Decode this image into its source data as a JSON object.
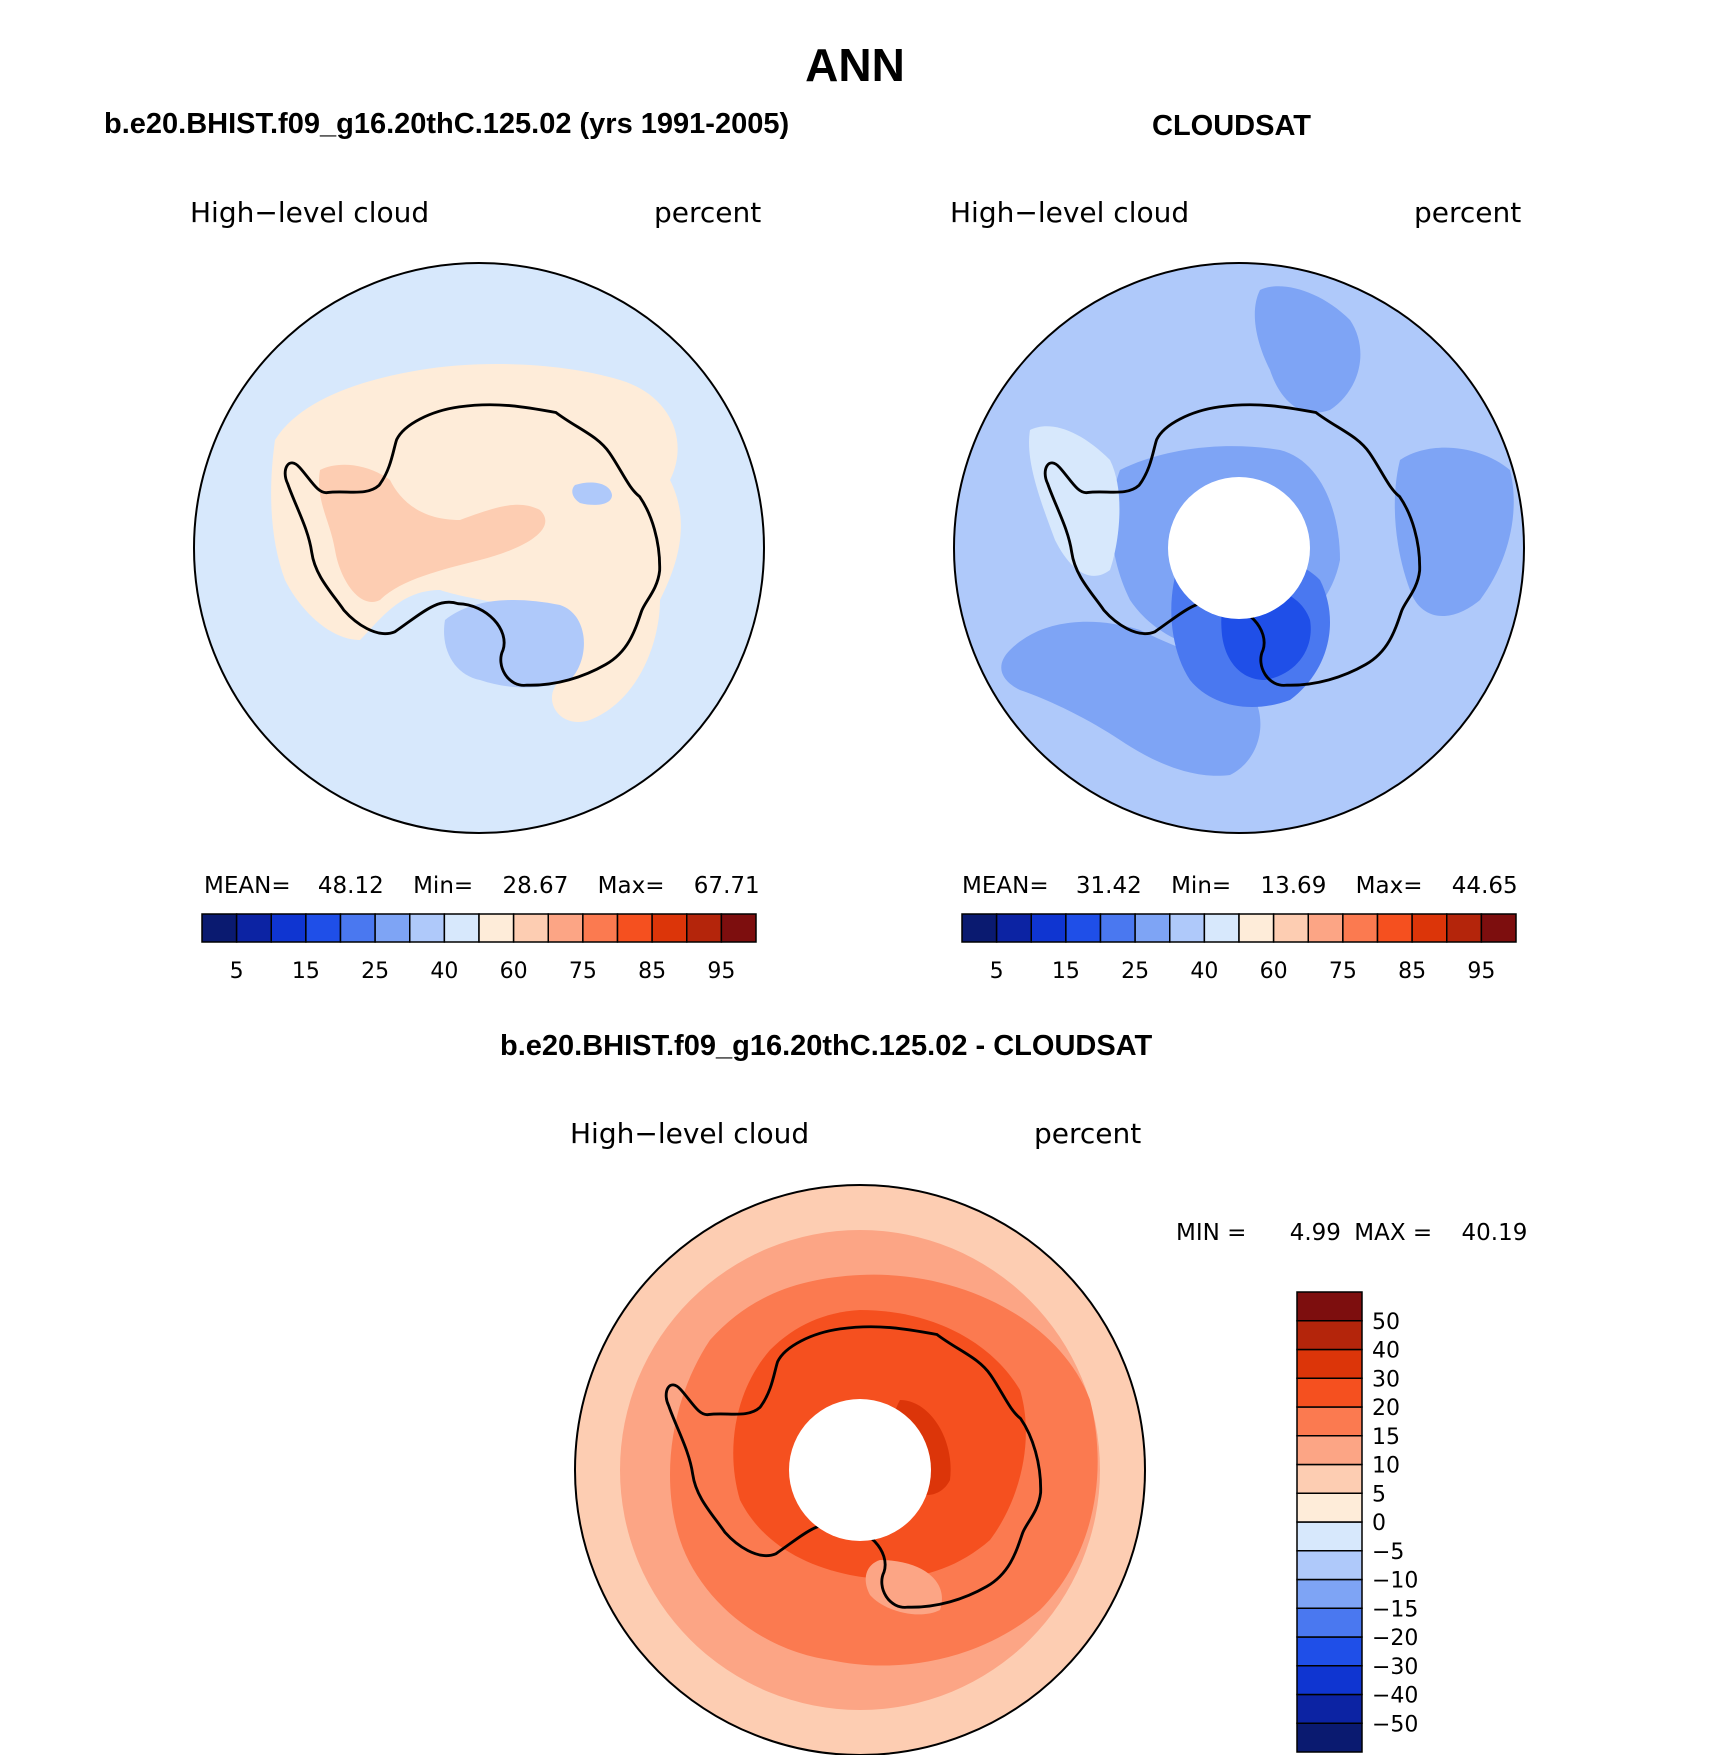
{
  "figure": {
    "title": "ANN"
  },
  "panels": {
    "model": {
      "title": "b.e20.BHIST.f09_g16.20thC.125.02 (yrs 1991-2005)",
      "variable": "High−level cloud",
      "units": "percent",
      "stats": {
        "mean_label": "MEAN=",
        "mean": "48.12",
        "min_label": "Min=",
        "min": "28.67",
        "max_label": "Max=",
        "max": "67.71"
      }
    },
    "obs": {
      "title": "CLOUDSAT",
      "variable": "High−level cloud",
      "units": "percent",
      "stats": {
        "mean_label": "MEAN=",
        "mean": "31.42",
        "min_label": "Min=",
        "min": "13.69",
        "max_label": "Max=",
        "max": "44.65"
      }
    },
    "diff": {
      "title": "b.e20.BHIST.f09_g16.20thC.125.02 - CLOUDSAT",
      "variable": "High−level cloud",
      "units": "percent",
      "stats": {
        "min_label": "MIN =",
        "min": "4.99",
        "max_label": "MAX =",
        "max": "40.19"
      }
    }
  },
  "colorbars": {
    "field": {
      "colors": [
        "#0a1a70",
        "#0c23a3",
        "#0f35d1",
        "#1f4fe8",
        "#4a78f0",
        "#7ea4f5",
        "#afc9fa",
        "#d7e8fc",
        "#feecd9",
        "#fdcdb2",
        "#fca585",
        "#fb7a50",
        "#f5501f",
        "#dc3509",
        "#b4250b",
        "#7d0e0e"
      ],
      "labels": [
        "5",
        "15",
        "25",
        "40",
        "60",
        "75",
        "85",
        "95"
      ]
    },
    "diff": {
      "colors": [
        "#0a1a70",
        "#0c23a3",
        "#0f35d1",
        "#1f4fe8",
        "#4a78f0",
        "#7ea4f5",
        "#afc9fa",
        "#d7e8fc",
        "#feecd9",
        "#fdcdb2",
        "#fca585",
        "#fb7a50",
        "#f5501f",
        "#dc3509",
        "#b4250b",
        "#7d0e0e"
      ],
      "labels": [
        "−50",
        "−40",
        "−30",
        "−20",
        "−15",
        "−10",
        "−5",
        "0",
        "5",
        "10",
        "15",
        "20",
        "30",
        "40",
        "50"
      ]
    }
  },
  "map_colors": {
    "ocean_model": "#d7e8fc",
    "warm_light": "#feecd9",
    "warm_mid": "#fdcdb2",
    "cool_light": "#afc9fa",
    "cool_mid": "#7ea4f5",
    "cool_dark": "#4a78f0",
    "cool_deep": "#1f4fe8",
    "cool_deepest": "#0f35d1",
    "diff_base": "#fdcdb2",
    "diff_mid": "#fca585",
    "diff_high": "#fb7a50",
    "diff_top": "#f5501f",
    "diff_peak": "#dc3509",
    "coast": "#000000"
  }
}
